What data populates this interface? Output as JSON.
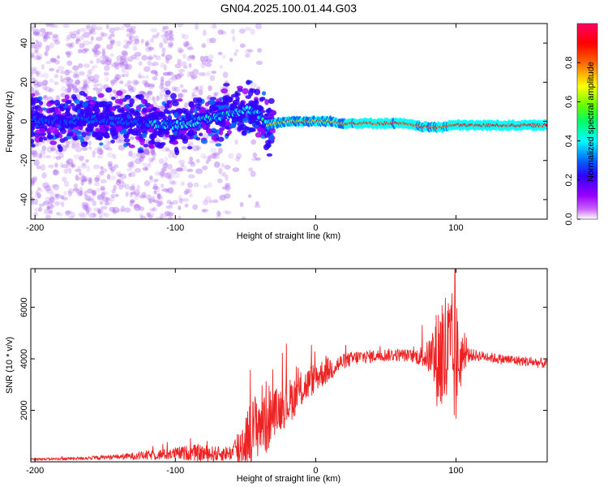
{
  "chart_data": [
    {
      "type": "heatmap",
      "title": "GN04.2025.100.01.44.G03",
      "xlabel": "Height of straight line (km)",
      "ylabel": "Frequency (Hz)",
      "xlim": [
        -203,
        165
      ],
      "ylim": [
        -50,
        50
      ],
      "xticks": [
        -200,
        -100,
        0,
        100
      ],
      "xtick_labels": [
        "-200",
        "-100",
        "0",
        "100"
      ],
      "yticks": [
        -40,
        -20,
        0,
        20,
        40
      ],
      "ytick_labels": [
        "-40",
        "-20",
        "0",
        "20",
        "40"
      ],
      "colorbar": {
        "label": "Normalized spectral amplitude",
        "range": [
          0,
          1
        ],
        "ticks": [
          0,
          0.2,
          0.4,
          0.6,
          0.8
        ],
        "tick_labels": [
          "0.0",
          "0.2",
          "0.4",
          "0.6",
          "0.8"
        ],
        "colors": [
          "#ffffff",
          "#9900ff",
          "#3300ff",
          "#0066ff",
          "#00ffff",
          "#00ff66",
          "#66ff00",
          "#ffff00",
          "#ff6600",
          "#ff0000",
          "#ff0066"
        ]
      },
      "ridge": {
        "x": [
          -200,
          -180,
          -160,
          -140,
          -120,
          -100,
          -90,
          -80,
          -70,
          -60,
          -50,
          -45,
          -40,
          -35,
          -30,
          -20,
          -10,
          0,
          10,
          20,
          40,
          60,
          80,
          90,
          95,
          100,
          120,
          140,
          165
        ],
        "y": [
          1,
          0,
          1,
          0,
          -1,
          -2,
          -1,
          1,
          2,
          4,
          6,
          5,
          3,
          -2,
          -1,
          0,
          0,
          0,
          0,
          -1,
          -1,
          -1,
          -3,
          -3,
          -2,
          -2,
          -2,
          -2,
          -2
        ]
      },
      "grid": false
    },
    {
      "type": "line",
      "title": "",
      "xlabel": "Height of straight line (km)",
      "ylabel": "SNR (10 * v/v)",
      "xlim": [
        -203,
        165
      ],
      "ylim": [
        0,
        7500
      ],
      "xticks": [
        -200,
        -100,
        0,
        100
      ],
      "xtick_labels": [
        "-200",
        "-100",
        "0",
        "100"
      ],
      "yticks": [
        2000,
        4000,
        6000
      ],
      "ytick_labels": [
        "2000",
        "4000",
        "6000"
      ],
      "series": [
        {
          "color": "#ee2222",
          "x": [
            -203,
            -180,
            -160,
            -140,
            -120,
            -100,
            -90,
            -80,
            -70,
            -60,
            -55,
            -50,
            -45,
            -40,
            -35,
            -30,
            -25,
            -20,
            -10,
            0,
            10,
            20,
            30,
            40,
            50,
            60,
            70,
            80,
            85,
            90,
            95,
            100,
            105,
            110,
            120,
            130,
            140,
            150,
            165
          ],
          "y": [
            100,
            120,
            150,
            200,
            250,
            320,
            350,
            330,
            300,
            350,
            500,
            900,
            1200,
            1600,
            1700,
            1900,
            2100,
            2300,
            2800,
            3300,
            3600,
            3900,
            4050,
            4100,
            4150,
            4150,
            4100,
            4100,
            4000,
            4200,
            4000,
            3800,
            4100,
            4150,
            4100,
            4000,
            3950,
            3900,
            3800
          ],
          "noise": [
            40,
            50,
            70,
            100,
            180,
            250,
            300,
            350,
            300,
            300,
            900,
            1100,
            1300,
            1400,
            1500,
            900,
            900,
            900,
            700,
            600,
            500,
            300,
            300,
            250,
            250,
            250,
            250,
            600,
            1600,
            2800,
            2800,
            2600,
            600,
            250,
            200,
            200,
            200,
            200,
            200
          ]
        }
      ],
      "grid": false
    }
  ]
}
